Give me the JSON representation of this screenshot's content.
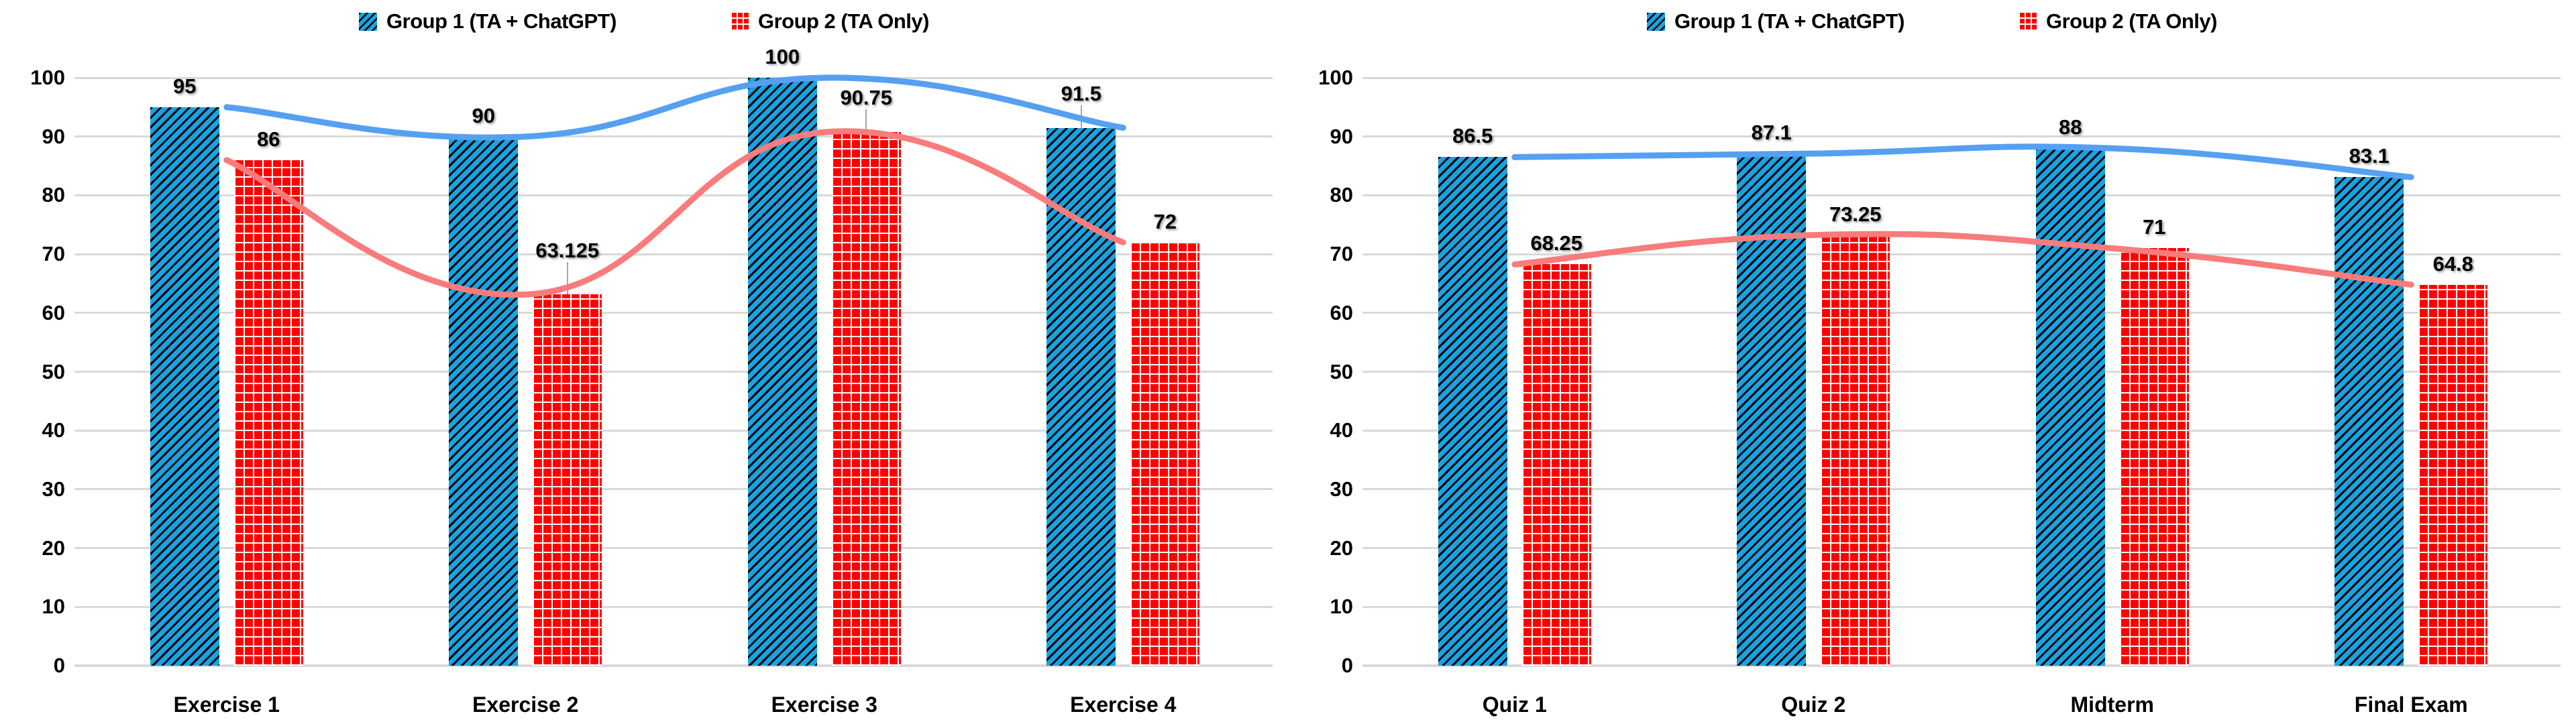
{
  "colors": {
    "group1_bar": "#18a3e2",
    "group2_bar": "#fe0000",
    "group1_line": "#56a0f1",
    "group2_line": "#f87c7c",
    "gridline": "#d9d9d9",
    "leader_line": "#a6a6a6",
    "text": "#000000",
    "background": "#ffffff"
  },
  "legend": {
    "items": [
      {
        "label": "Group 1 (TA + ChatGPT)",
        "pattern": "diagonal-hatch",
        "color": "#18a3e2"
      },
      {
        "label": "Group 2 (TA Only)",
        "pattern": "grid-hatch",
        "color": "#fe0000"
      }
    ]
  },
  "chart_data": [
    {
      "type": "bar",
      "overlay": "smooth-line",
      "title": "",
      "categories": [
        "Exercise 1",
        "Exercise 2",
        "Exercise 3",
        "Exercise 4"
      ],
      "series": [
        {
          "name": "Group 1 (TA + ChatGPT)",
          "values": [
            95,
            90,
            100,
            91.5
          ],
          "labels": [
            "95",
            "90",
            "100",
            "91.5"
          ]
        },
        {
          "name": "Group 2 (TA Only)",
          "values": [
            86,
            63.125,
            90.75,
            72
          ],
          "labels": [
            "86",
            "63.125",
            "90.75",
            "72"
          ]
        }
      ],
      "yticks": [
        "0",
        "10",
        "20",
        "30",
        "40",
        "50",
        "60",
        "70",
        "80",
        "90",
        "100"
      ],
      "ylim": [
        0,
        100
      ],
      "ytick_interval": 10,
      "grid": true,
      "legend_position": "top",
      "lifted_labels": [
        {
          "series": 1,
          "index": 1,
          "lift": 34
        },
        {
          "series": 1,
          "index": 2,
          "lift": 20
        },
        {
          "series": 0,
          "index": 3,
          "lift": 20
        }
      ]
    },
    {
      "type": "bar",
      "overlay": "smooth-line",
      "title": "",
      "categories": [
        "Quiz 1",
        "Quiz 2",
        "Midterm",
        "Final Exam"
      ],
      "series": [
        {
          "name": "Group 1 (TA + ChatGPT)",
          "values": [
            86.5,
            87.1,
            88,
            83.1
          ],
          "labels": [
            "86.5",
            "87.1",
            "88",
            "83.1"
          ]
        },
        {
          "name": "Group 2 (TA Only)",
          "values": [
            68.25,
            73.25,
            71,
            64.8
          ],
          "labels": [
            "68.25",
            "73.25",
            "71",
            "64.8"
          ]
        }
      ],
      "yticks": [
        "0",
        "10",
        "20",
        "30",
        "40",
        "50",
        "60",
        "70",
        "80",
        "90",
        "100"
      ],
      "ylim": [
        0,
        100
      ],
      "ytick_interval": 10,
      "grid": true,
      "legend_position": "top",
      "lifted_labels": []
    }
  ]
}
